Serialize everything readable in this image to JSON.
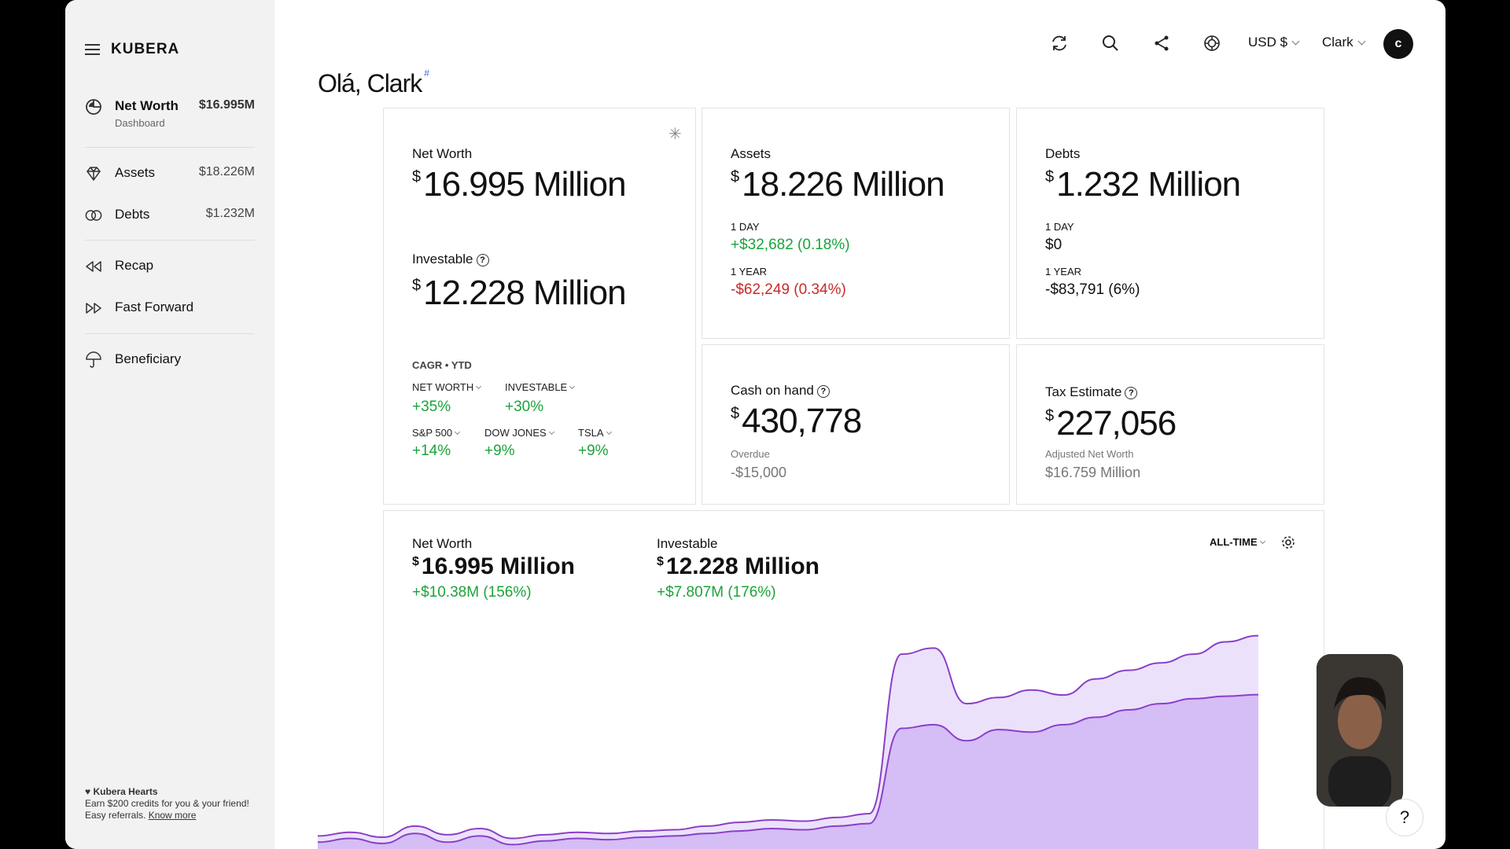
{
  "app": {
    "logo": "KUBERA"
  },
  "sidebar": {
    "items": [
      {
        "label": "Net Worth",
        "sub": "Dashboard",
        "value": "$16.995M",
        "icon": "pie-chart-icon"
      },
      {
        "label": "Assets",
        "value": "$18.226M",
        "icon": "diamond-icon"
      },
      {
        "label": "Debts",
        "value": "$1.232M",
        "icon": "linked-circles-icon"
      },
      {
        "label": "Recap",
        "icon": "rewind-icon"
      },
      {
        "label": "Fast Forward",
        "icon": "fast-forward-icon"
      },
      {
        "label": "Beneficiary",
        "icon": "umbrella-icon"
      }
    ],
    "hearts": {
      "title": "♥ Kubera Hearts",
      "text": "Earn $200 credits for you & your friend! Easy referrals.",
      "link": "Know more"
    }
  },
  "topbar": {
    "currency": "USD $",
    "user": "Clark",
    "avatar": "c"
  },
  "greeting": {
    "text": "Olá, Clark",
    "mark": "#"
  },
  "cards": {
    "networth": {
      "title": "Net Worth",
      "currency": "$",
      "value": "16.995 Million",
      "investable_title": "Investable",
      "investable_value": "12.228 Million",
      "cagr_title": "CAGR • YTD",
      "cagr": [
        {
          "key": "NET WORTH",
          "value": "+35%"
        },
        {
          "key": "INVESTABLE",
          "value": "+30%"
        },
        {
          "key": "S&P 500",
          "value": "+14%"
        },
        {
          "key": "DOW JONES",
          "value": "+9%"
        },
        {
          "key": "TSLA",
          "value": "+9%"
        }
      ]
    },
    "assets": {
      "title": "Assets",
      "currency": "$",
      "value": "18.226 Million",
      "day_label": "1 DAY",
      "day_change": "+$32,682 (0.18%)",
      "year_label": "1 YEAR",
      "year_change": "-$62,249 (0.34%)"
    },
    "debts": {
      "title": "Debts",
      "currency": "$",
      "value": "1.232 Million",
      "day_label": "1 DAY",
      "day_change": "$0",
      "year_label": "1 YEAR",
      "year_change": "-$83,791 (6%)"
    },
    "cash": {
      "title": "Cash on hand",
      "currency": "$",
      "value": "430,778",
      "sub_label": "Overdue",
      "sub_value": "-$15,000"
    },
    "tax": {
      "title": "Tax Estimate",
      "currency": "$",
      "value": "227,056",
      "sub_label": "Adjusted Net Worth",
      "sub_value": "$16.759 Million"
    }
  },
  "chart": {
    "networth_label": "Net Worth",
    "networth_currency": "$",
    "networth_value": "16.995 Million",
    "networth_change": "+$10.38M (156%)",
    "investable_label": "Investable",
    "investable_currency": "$",
    "investable_value": "12.228 Million",
    "investable_change": "+$7.807M (176%)",
    "range": "ALL-TIME",
    "colors": {
      "networth": "#ece1fb",
      "investable": "#d5bdf6",
      "line": "#8a3fc9"
    }
  },
  "chart_data": {
    "type": "area",
    "series": [
      {
        "name": "Net Worth",
        "values": [
          0.8,
          1.1,
          0.7,
          1.6,
          0.9,
          1.4,
          0.6,
          0.9,
          1.1,
          1.0,
          1.2,
          1.3,
          1.6,
          1.9,
          2.1,
          2.0,
          2.3,
          2.6,
          15.5,
          16.0,
          11.5,
          12.0,
          12.6,
          12.2,
          13.5,
          14.2,
          14.8,
          15.5,
          16.5,
          16.995
        ]
      },
      {
        "name": "Investable",
        "values": [
          0.3,
          0.6,
          0.2,
          1.0,
          0.3,
          0.8,
          0.1,
          0.4,
          0.6,
          0.5,
          0.7,
          0.8,
          1.0,
          1.2,
          1.4,
          1.3,
          1.6,
          1.8,
          9.5,
          9.8,
          8.5,
          9.4,
          9.2,
          9.8,
          10.4,
          11.0,
          11.5,
          11.9,
          12.1,
          12.228
        ]
      }
    ]
  }
}
